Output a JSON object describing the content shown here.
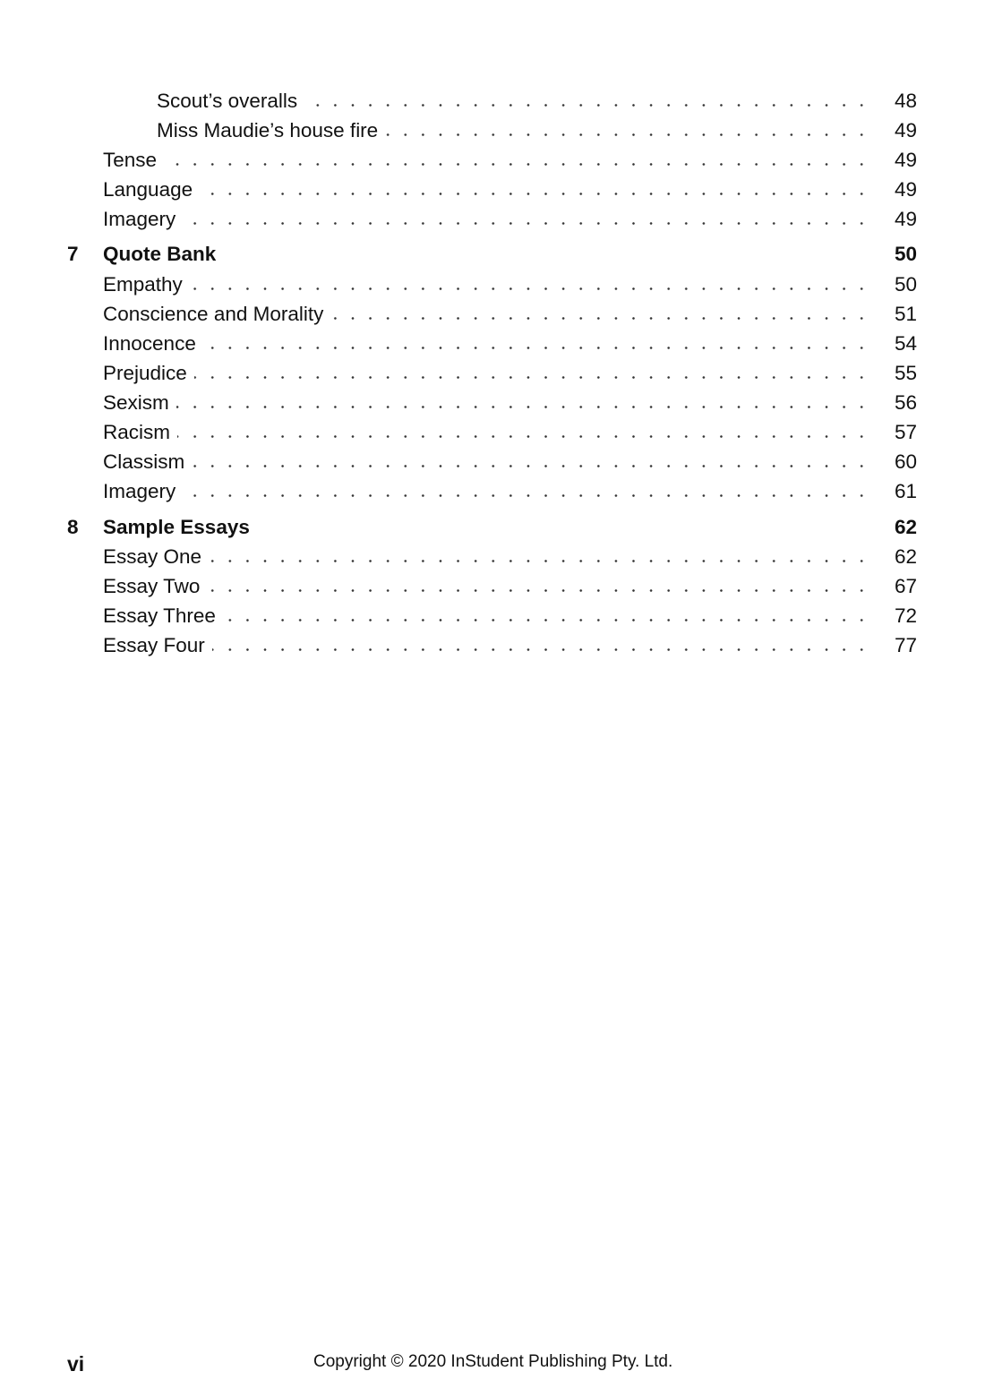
{
  "toc": [
    {
      "type": "lvl2",
      "title": "Scout’s overalls",
      "page": "48"
    },
    {
      "type": "lvl2",
      "title": "Miss Maudie’s house fire",
      "page": "49"
    },
    {
      "type": "lvl1",
      "title": "Tense",
      "page": "49"
    },
    {
      "type": "lvl1",
      "title": "Language",
      "page": "49"
    },
    {
      "type": "lvl1",
      "title": "Imagery",
      "page": "49"
    },
    {
      "type": "chapter",
      "num": "7",
      "title": "Quote Bank",
      "page": "50"
    },
    {
      "type": "lvl1",
      "title": "Empathy",
      "page": "50"
    },
    {
      "type": "lvl1",
      "title": "Conscience and Morality",
      "page": "51"
    },
    {
      "type": "lvl1",
      "title": "Innocence",
      "page": "54"
    },
    {
      "type": "lvl1",
      "title": "Prejudice",
      "page": "55"
    },
    {
      "type": "lvl1",
      "title": "Sexism",
      "page": "56"
    },
    {
      "type": "lvl1",
      "title": "Racism",
      "page": "57"
    },
    {
      "type": "lvl1",
      "title": "Classism",
      "page": "60"
    },
    {
      "type": "lvl1",
      "title": "Imagery",
      "page": "61"
    },
    {
      "type": "chapter",
      "num": "8",
      "title": "Sample Essays",
      "page": "62"
    },
    {
      "type": "lvl1",
      "title": "Essay One",
      "page": "62"
    },
    {
      "type": "lvl1",
      "title": "Essay Two",
      "page": "67"
    },
    {
      "type": "lvl1",
      "title": "Essay Three",
      "page": "72"
    },
    {
      "type": "lvl1",
      "title": "Essay Four",
      "page": "77"
    }
  ],
  "footer": {
    "folio": "vi",
    "copyright": "Copyright © 2020 InStudent Publishing Pty. Ltd."
  }
}
